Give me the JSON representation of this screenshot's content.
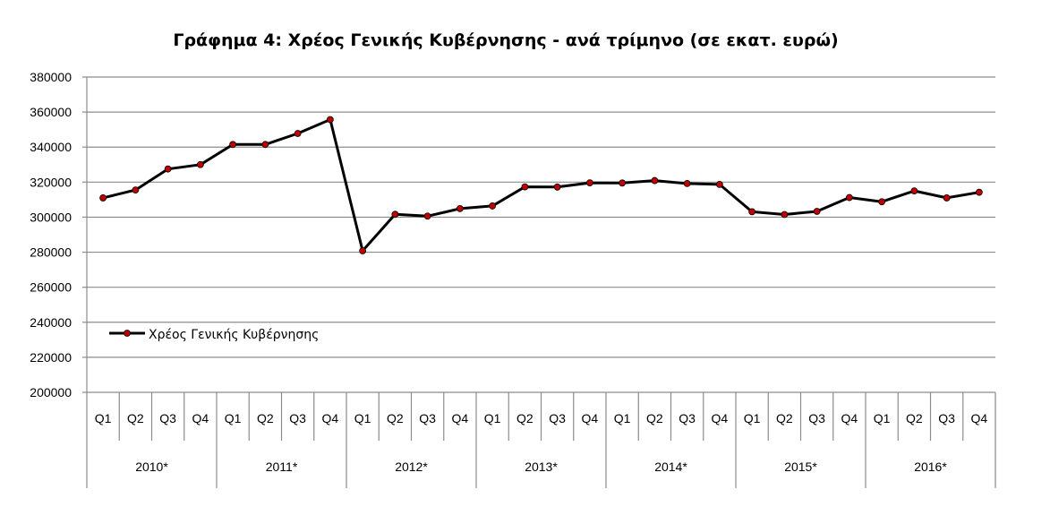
{
  "chart_data": {
    "type": "line",
    "title": "Γράφημα 4: Χρέος Γενικής Κυβέρνησης - ανά τρίμηνο (σε εκατ. ευρώ)",
    "xlabel": "",
    "ylabel": "",
    "ylim": [
      200000,
      380000
    ],
    "yticks": [
      "200000",
      "220000",
      "240000",
      "260000",
      "280000",
      "300000",
      "320000",
      "340000",
      "360000",
      "380000"
    ],
    "grid": true,
    "legend_position": "lower-left",
    "years": [
      "2010*",
      "2011*",
      "2012*",
      "2013*",
      "2014*",
      "2015*",
      "2016*"
    ],
    "quarters": [
      "Q1",
      "Q2",
      "Q3",
      "Q4"
    ],
    "series": [
      {
        "name": "Χρέος Γενικής Κυβέρνησης",
        "color": "#000000",
        "marker_color": "#c00000",
        "values": [
          311000,
          315500,
          327500,
          330000,
          341500,
          341500,
          347800,
          355700,
          280800,
          301600,
          300600,
          304900,
          306400,
          317300,
          317200,
          319600,
          319500,
          320900,
          319200,
          318700,
          303100,
          301500,
          303300,
          311200,
          308800,
          315000,
          311000,
          314200
        ]
      }
    ]
  }
}
